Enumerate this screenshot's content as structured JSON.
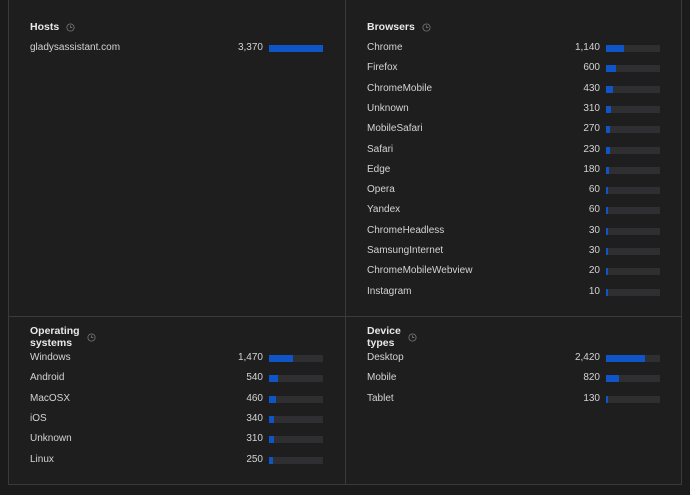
{
  "hosts": {
    "title": "Hosts",
    "rows": [
      {
        "label": "gladysassistant.com",
        "value": "3,370",
        "fraction": 1.0
      }
    ]
  },
  "browsers": {
    "title": "Browsers",
    "rows": [
      {
        "label": "Chrome",
        "value": "1,140",
        "fraction": 0.338
      },
      {
        "label": "Firefox",
        "value": "600",
        "fraction": 0.178
      },
      {
        "label": "ChromeMobile",
        "value": "430",
        "fraction": 0.128
      },
      {
        "label": "Unknown",
        "value": "310",
        "fraction": 0.092
      },
      {
        "label": "MobileSafari",
        "value": "270",
        "fraction": 0.08
      },
      {
        "label": "Safari",
        "value": "230",
        "fraction": 0.068
      },
      {
        "label": "Edge",
        "value": "180",
        "fraction": 0.053
      },
      {
        "label": "Opera",
        "value": "60",
        "fraction": 0.018
      },
      {
        "label": "Yandex",
        "value": "60",
        "fraction": 0.018
      },
      {
        "label": "ChromeHeadless",
        "value": "30",
        "fraction": 0.009
      },
      {
        "label": "SamsungInternet",
        "value": "30",
        "fraction": 0.009
      },
      {
        "label": "ChromeMobileWebview",
        "value": "20",
        "fraction": 0.006
      },
      {
        "label": "Instagram",
        "value": "10",
        "fraction": 0.003
      }
    ]
  },
  "os": {
    "title": "Operating systems",
    "rows": [
      {
        "label": "Windows",
        "value": "1,470",
        "fraction": 0.436
      },
      {
        "label": "Android",
        "value": "540",
        "fraction": 0.16
      },
      {
        "label": "MacOSX",
        "value": "460",
        "fraction": 0.137
      },
      {
        "label": "iOS",
        "value": "340",
        "fraction": 0.101
      },
      {
        "label": "Unknown",
        "value": "310",
        "fraction": 0.092
      },
      {
        "label": "Linux",
        "value": "250",
        "fraction": 0.074
      }
    ]
  },
  "devices": {
    "title": "Device types",
    "rows": [
      {
        "label": "Desktop",
        "value": "2,420",
        "fraction": 0.718
      },
      {
        "label": "Mobile",
        "value": "820",
        "fraction": 0.243
      },
      {
        "label": "Tablet",
        "value": "130",
        "fraction": 0.039
      }
    ]
  },
  "colors": {
    "bar_fill": "#0f55c8",
    "bar_track": "#2f2f31",
    "background": "#1e1e1f",
    "divider": "#3a3a3c"
  },
  "icons": {
    "title_icon": "clock-icon"
  }
}
